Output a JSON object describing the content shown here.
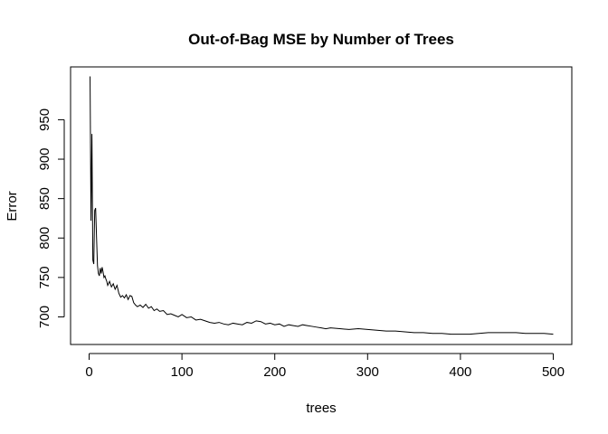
{
  "chart_data": {
    "type": "line",
    "title": "Out-of-Bag MSE by Number of Trees",
    "xlabel": "trees",
    "ylabel": "Error",
    "xlim": [
      -20,
      520
    ],
    "ylim": [
      665,
      1017
    ],
    "xticks": [
      0,
      100,
      200,
      300,
      400,
      500
    ],
    "yticks": [
      700,
      750,
      800,
      850,
      900,
      950
    ],
    "grid": false,
    "legend": "none",
    "line_color": "#000000",
    "series": [
      {
        "x": [
          1,
          2,
          3,
          4,
          5,
          6,
          7,
          8,
          9,
          10,
          11,
          12,
          13,
          14,
          15,
          16,
          17,
          18,
          19,
          20,
          22,
          24,
          26,
          28,
          30,
          32,
          34,
          36,
          38,
          40,
          42,
          44,
          46,
          48,
          50,
          52,
          55,
          58,
          61,
          64,
          67,
          70,
          73,
          76,
          80,
          84,
          88,
          92,
          96,
          100,
          105,
          110,
          115,
          120,
          125,
          130,
          135,
          140,
          145,
          150,
          155,
          160,
          165,
          170,
          175,
          180,
          185,
          190,
          195,
          200,
          205,
          210,
          215,
          220,
          225,
          230,
          235,
          240,
          245,
          250,
          255,
          260,
          270,
          280,
          290,
          300,
          310,
          320,
          330,
          340,
          350,
          360,
          370,
          380,
          390,
          400,
          410,
          420,
          430,
          440,
          450,
          460,
          470,
          480,
          490,
          500
        ],
        "values": [
          1005,
          822,
          932,
          772,
          767,
          835,
          838,
          800,
          765,
          755,
          752,
          762,
          755,
          763,
          757,
          750,
          752,
          748,
          745,
          740,
          745,
          738,
          742,
          735,
          740,
          730,
          725,
          727,
          724,
          728,
          722,
          727,
          726,
          718,
          715,
          713,
          715,
          712,
          716,
          711,
          713,
          708,
          710,
          707,
          708,
          703,
          704,
          702,
          700,
          703,
          699,
          700,
          696,
          697,
          695,
          693,
          692,
          693,
          691,
          690,
          692,
          691,
          690,
          693,
          692,
          695,
          694,
          691,
          692,
          690,
          691,
          688,
          690,
          689,
          688,
          690,
          689,
          688,
          687,
          686,
          685,
          686,
          685,
          684,
          685,
          684,
          683,
          682,
          682,
          681,
          680,
          680,
          679,
          679,
          678,
          678,
          678,
          679,
          680,
          680,
          680,
          680,
          679,
          679,
          679,
          678
        ]
      }
    ]
  }
}
